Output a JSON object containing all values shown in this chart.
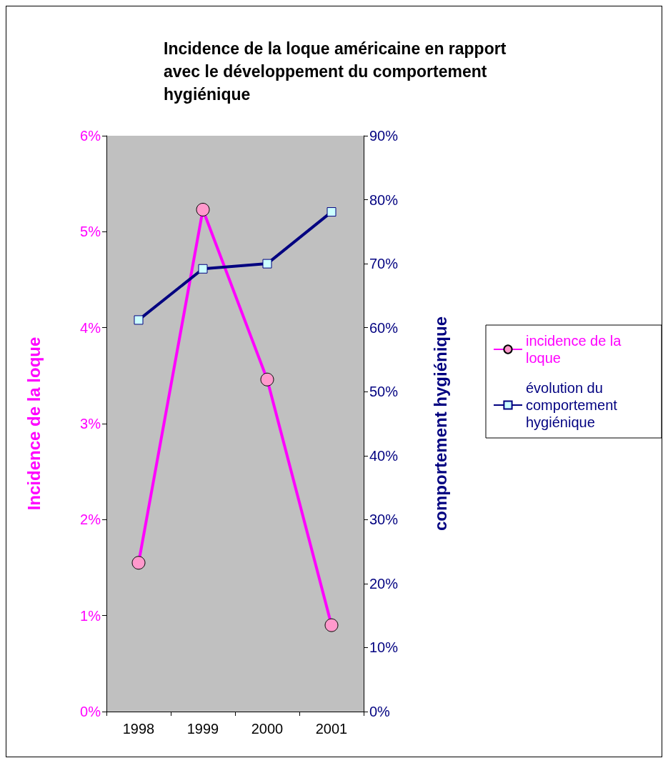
{
  "chart_data": {
    "type": "line",
    "title": "Incidence de la loque américaine en rapport avec le développement du comportement hygiénique",
    "ylabel": "Incidence de la loque",
    "y2label": "comportement hygiénique",
    "categories": [
      "1998",
      "1999",
      "2000",
      "2001"
    ],
    "series": [
      {
        "name": "incidence de la loque",
        "color": "#ff00ff",
        "marker": "circle",
        "values": [
          1.55,
          5.23,
          3.46,
          0.9
        ]
      },
      {
        "name": "évolution du comportement hygiénique",
        "color": "#000080",
        "marker": "square",
        "axis": "y2",
        "values": [
          61.2,
          69.2,
          70.0,
          78.1
        ]
      }
    ],
    "ylim": [
      0,
      6
    ],
    "yticks": [
      {
        "value": 0,
        "label": "0%"
      },
      {
        "value": 1,
        "label": "1%"
      },
      {
        "value": 2,
        "label": "2%"
      },
      {
        "value": 3,
        "label": "3%"
      },
      {
        "value": 4,
        "label": "4%"
      },
      {
        "value": 5,
        "label": "5%"
      },
      {
        "value": 6,
        "label": "6%"
      }
    ],
    "y2lim": [
      0,
      90
    ],
    "y2ticks": [
      {
        "value": 0,
        "label": "0%"
      },
      {
        "value": 10,
        "label": "10%"
      },
      {
        "value": 20,
        "label": "20%"
      },
      {
        "value": 30,
        "label": "30%"
      },
      {
        "value": 40,
        "label": "40%"
      },
      {
        "value": 50,
        "label": "50%"
      },
      {
        "value": 60,
        "label": "60%"
      },
      {
        "value": 70,
        "label": "70%"
      },
      {
        "value": 80,
        "label": "80%"
      },
      {
        "value": 90,
        "label": "90%"
      }
    ],
    "grid": false,
    "legend": "right"
  }
}
